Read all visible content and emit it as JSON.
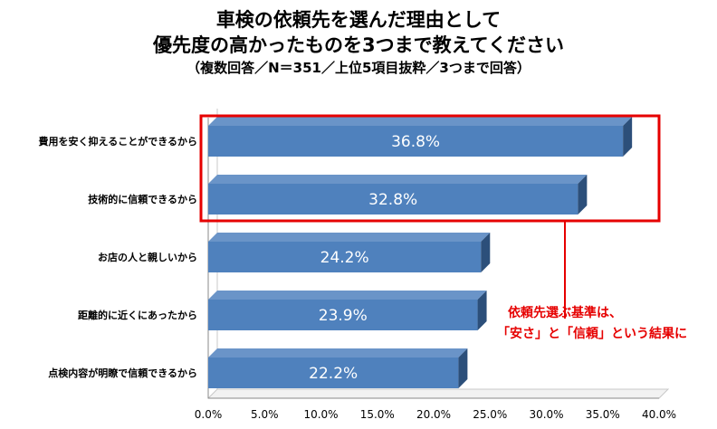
{
  "title_line1": "車検の依頼先を選んだ理由として",
  "title_line2": "優先度の高かったものを3つまで教えてください",
  "subtitle": "（複数回答／N＝351／上位5項目抜粋／3つまで回答）",
  "annotation": {
    "line1": "依頼先選ぶ基準は、",
    "line2": "「安さ」と「信頼」という結果に"
  },
  "colors": {
    "bar": "#4f81bd",
    "bar_top": "#6a94c8",
    "bar_side": "#2c4f7a",
    "highlight": "#e60000"
  },
  "chart_data": {
    "type": "bar",
    "orientation": "horizontal",
    "categories": [
      "費用を安く抑えることができるから",
      "技術的に信頼できるから",
      "お店の人と親しいから",
      "距離的に近くにあったから",
      "点検内容が明瞭で信頼できるから"
    ],
    "values": [
      36.8,
      32.8,
      24.2,
      23.9,
      22.2
    ],
    "value_labels": [
      "36.8%",
      "32.8%",
      "24.2%",
      "23.9%",
      "22.2%"
    ],
    "xlim": [
      0,
      40
    ],
    "x_ticks": [
      "0.0%",
      "5.0%",
      "10.0%",
      "15.0%",
      "20.0%",
      "25.0%",
      "30.0%",
      "35.0%",
      "40.0%"
    ],
    "grid": false,
    "highlighted_categories": [
      0,
      1
    ]
  }
}
